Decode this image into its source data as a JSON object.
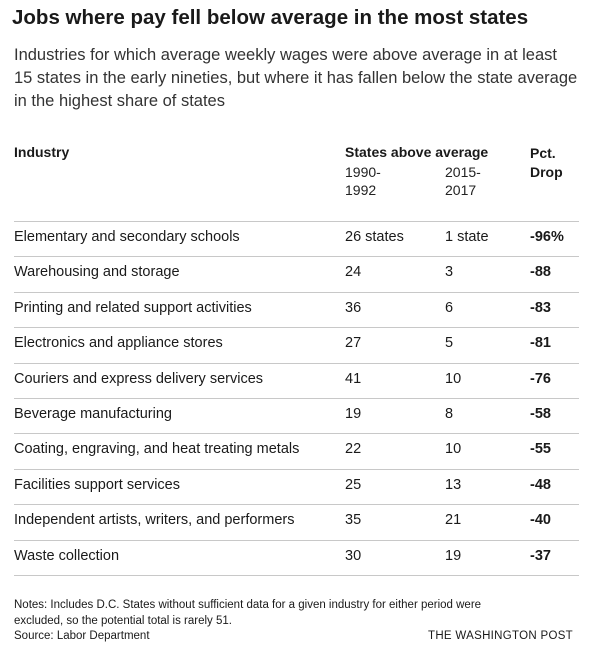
{
  "header": {
    "title": "Jobs where pay fell below average in the most states",
    "subtitle": "Industries for which average weekly wages were above average in at least 15 states in the early nineties, but where it has fallen below the state average in the highest share of states"
  },
  "table": {
    "group_header": "States above average",
    "columns": [
      "Industry",
      "1990-1992",
      "2015-2017",
      "Pct. Drop"
    ],
    "rows": [
      [
        "Elementary and secondary schools",
        "26 states",
        "1 state",
        "-96%"
      ],
      [
        "Warehousing and storage",
        "24",
        "3",
        "-88"
      ],
      [
        "Printing and related support activities",
        "36",
        "6",
        "-83"
      ],
      [
        "Electronics and appliance stores",
        "27",
        "5",
        "-81"
      ],
      [
        "Couriers and express delivery services",
        "41",
        "10",
        "-76"
      ],
      [
        "Beverage manufacturing",
        "19",
        "8",
        "-58"
      ],
      [
        "Coating, engraving, and heat treating metals",
        "22",
        "10",
        "-55"
      ],
      [
        "Facilities support services",
        "25",
        "13",
        "-48"
      ],
      [
        "Independent artists, writers, and performers",
        "35",
        "21",
        "-40"
      ],
      [
        "Waste collection",
        "30",
        "19",
        "-37"
      ]
    ]
  },
  "footer": {
    "notes": "Notes: Includes D.C. States without sufficient data for a given industry for either period were excluded, so the potential total is rarely 51.",
    "source": "Source: Labor Department",
    "credit": "THE WASHINGTON POST"
  }
}
